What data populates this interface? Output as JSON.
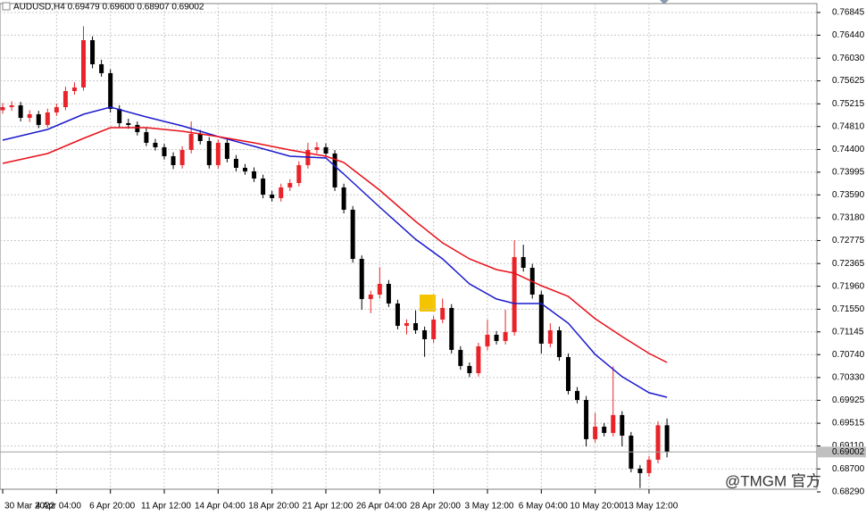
{
  "chart_data": {
    "type": "candlestick",
    "title": "AUDUSD,H4  0.69479 0.69600 0.68907 0.69002",
    "watermark": "@TMGM 官方",
    "up_color": "#e8242a",
    "down_color": "#000000",
    "grid": true,
    "xlim": [
      -0.3,
      90.7
    ],
    "ylim": [
      0.68258,
      0.77004
    ],
    "yticks": [
      0.76845,
      {
        "value": 0.7644,
        "label": "0.76440"
      },
      {
        "value": 0.7603,
        "label": "0.76030"
      },
      0.75625,
      0.75215,
      {
        "value": 0.7481,
        "label": "0.74810"
      },
      {
        "value": 0.744,
        "label": "0.74400"
      },
      0.73995,
      {
        "value": 0.7359,
        "label": "0.73590"
      },
      {
        "value": 0.7318,
        "label": "0.73180"
      },
      0.72775,
      0.72365,
      {
        "value": 0.7196,
        "label": "0.71960"
      },
      {
        "value": 0.7155,
        "label": "0.71550"
      },
      0.71145,
      {
        "value": 0.7074,
        "label": "0.70740"
      },
      {
        "value": 0.7033,
        "label": "0.70330"
      },
      0.69925,
      0.69515,
      {
        "value": 0.6911,
        "label": "0.69110"
      },
      {
        "value": 0.687,
        "label": "0.68700"
      },
      {
        "value": 0.6829,
        "label": "0.68290"
      }
    ],
    "xticks": [
      {
        "value": 0,
        "label": "30 Mar 2022"
      },
      {
        "value": 6,
        "label": "4 Apr 04:00"
      },
      {
        "value": 12,
        "label": "6 Apr 20:00"
      },
      {
        "value": 18,
        "label": "11 Apr 12:00"
      },
      {
        "value": 24,
        "label": "14 Apr 04:00"
      },
      {
        "value": 30,
        "label": "18 Apr 20:00"
      },
      {
        "value": 36,
        "label": "21 Apr 12:00"
      },
      {
        "value": 42,
        "label": "26 Apr 04:00"
      },
      {
        "value": 48,
        "label": "28 Apr 20:00"
      },
      {
        "value": 54,
        "label": "3 May 12:00"
      },
      {
        "value": 60,
        "label": "6 May 04:00"
      },
      {
        "value": 66,
        "label": "10 May 20:00"
      },
      {
        "value": 72,
        "label": "13 May 12:00"
      }
    ],
    "open": [
      0.751,
      0.75156,
      0.75188,
      0.74965,
      0.75029,
      0.74838,
      0.75061,
      0.75156,
      0.75443,
      0.75507,
      0.76351,
      0.75921,
      0.75762,
      0.75125,
      0.7487,
      0.74838,
      0.7471,
      0.74519,
      0.7444,
      0.7428,
      0.74121,
      0.74392,
      0.74679,
      0.74551,
      0.74121,
      0.74519,
      0.74233,
      0.74073,
      0.7401,
      0.73882,
      0.73595,
      0.73532,
      0.73723,
      0.73802,
      0.74121,
      0.74392,
      0.7444,
      0.74328,
      0.73723,
      0.73325,
      0.72448,
      0.71732,
      0.71811,
      0.72002,
      0.71652,
      0.71254,
      0.71301,
      0.71174,
      0.71015,
      0.71365,
      0.71572,
      0.70824,
      0.70537,
      0.70409,
      0.70887,
      0.71094,
      0.70983,
      0.71142,
      0.7248,
      0.72289,
      0.71811,
      0.70935,
      0.71174,
      0.70696,
      0.70091,
      0.69931,
      0.69231,
      0.69454,
      0.69342,
      0.69661,
      0.69294,
      0.68705,
      0.68625,
      0.68864,
      0.69479
    ],
    "high": [
      0.7523,
      0.7526,
      0.7525,
      0.751,
      0.7509,
      0.7513,
      0.7522,
      0.7552,
      0.756,
      0.766,
      0.7642,
      0.76,
      0.7583,
      0.7519,
      0.7495,
      0.749,
      0.7478,
      0.7459,
      0.745,
      0.7435,
      0.7446,
      0.749,
      0.7475,
      0.7462,
      0.7458,
      0.7458,
      0.743,
      0.7414,
      0.7408,
      0.7395,
      0.7366,
      0.7379,
      0.7387,
      0.7419,
      0.7452,
      0.7453,
      0.7451,
      0.7439,
      0.7379,
      0.7339,
      0.7251,
      0.7188,
      0.723,
      0.7207,
      0.7172,
      0.7137,
      0.7153,
      0.7124,
      0.7143,
      0.7174,
      0.7164,
      0.7089,
      0.706,
      0.7095,
      0.7136,
      0.7116,
      0.7154,
      0.7278,
      0.727,
      0.7236,
      0.7188,
      0.713,
      0.7124,
      0.7076,
      0.7016,
      0.7,
      0.697,
      0.6952,
      0.7053,
      0.6973,
      0.6936,
      0.6877,
      0.6893,
      0.6955,
      0.696
    ],
    "low": [
      0.7504,
      0.7509,
      0.749,
      0.7489,
      0.7478,
      0.7479,
      0.75,
      0.751,
      0.7538,
      0.7545,
      0.7585,
      0.757,
      0.7506,
      0.748,
      0.7477,
      0.7465,
      0.7446,
      0.7438,
      0.7422,
      0.7405,
      0.7406,
      0.7433,
      0.7449,
      0.7406,
      0.7406,
      0.7417,
      0.7401,
      0.7395,
      0.7382,
      0.7353,
      0.7347,
      0.7347,
      0.7366,
      0.7374,
      0.7406,
      0.7433,
      0.7426,
      0.7366,
      0.7326,
      0.7238,
      0.7154,
      0.7148,
      0.7174,
      0.7159,
      0.7119,
      0.711,
      0.7111,
      0.707,
      0.7095,
      0.713,
      0.7076,
      0.7047,
      0.7034,
      0.7035,
      0.7082,
      0.7092,
      0.7092,
      0.7108,
      0.7222,
      0.7174,
      0.7076,
      0.7087,
      0.7063,
      0.7003,
      0.6987,
      0.691,
      0.6917,
      0.6928,
      0.6928,
      0.691,
      0.6864,
      0.6836,
      0.6856,
      0.688,
      0.68907
    ],
    "close": [
      0.75156,
      0.75188,
      0.74965,
      0.75029,
      0.74838,
      0.75061,
      0.75156,
      0.75443,
      0.75507,
      0.76351,
      0.75921,
      0.75762,
      0.75125,
      0.7487,
      0.74838,
      0.7471,
      0.74519,
      0.7444,
      0.7428,
      0.74121,
      0.74392,
      0.74679,
      0.74551,
      0.74121,
      0.74519,
      0.74233,
      0.74073,
      0.7401,
      0.73882,
      0.73595,
      0.73532,
      0.73723,
      0.73802,
      0.74121,
      0.74392,
      0.7444,
      0.74328,
      0.73723,
      0.73325,
      0.72448,
      0.71732,
      0.71811,
      0.72002,
      0.71652,
      0.71254,
      0.71301,
      0.71174,
      0.71015,
      0.71365,
      0.71572,
      0.70824,
      0.70537,
      0.70409,
      0.70887,
      0.71094,
      0.70983,
      0.71142,
      0.7248,
      0.72289,
      0.71811,
      0.70935,
      0.71174,
      0.70696,
      0.70091,
      0.69931,
      0.69231,
      0.69454,
      0.69342,
      0.69661,
      0.69294,
      0.68705,
      0.68625,
      0.68864,
      0.69479,
      0.69002
    ],
    "series": [
      {
        "color": "#1a1acd",
        "x": [
          0,
          5,
          9,
          12,
          16,
          20,
          24,
          28,
          32,
          36,
          38,
          42,
          46,
          49,
          52,
          55,
          57,
          60,
          63,
          66,
          69,
          72,
          74
        ],
        "values": [
          0.74567,
          0.74758,
          0.75029,
          0.75156,
          0.74981,
          0.74822,
          0.74631,
          0.74456,
          0.7428,
          0.74248,
          0.73962,
          0.73372,
          0.72799,
          0.72448,
          0.72002,
          0.71732,
          0.71652,
          0.71652,
          0.71301,
          0.70744,
          0.70346,
          0.70059,
          0.69979
        ]
      },
      {
        "color": "#e8101a",
        "x": [
          0,
          5,
          9,
          12,
          16,
          20,
          24,
          28,
          32,
          36,
          38,
          42,
          46,
          49,
          52,
          55,
          57,
          60,
          63,
          66,
          69,
          72,
          74
        ],
        "values": [
          0.74153,
          0.74328,
          0.74599,
          0.7479,
          0.7479,
          0.74726,
          0.74631,
          0.74519,
          0.74392,
          0.7428,
          0.74169,
          0.73675,
          0.73117,
          0.72735,
          0.72448,
          0.72257,
          0.72193,
          0.7197,
          0.71779,
          0.71381,
          0.71062,
          0.7076,
          0.706
        ]
      }
    ]
  }
}
